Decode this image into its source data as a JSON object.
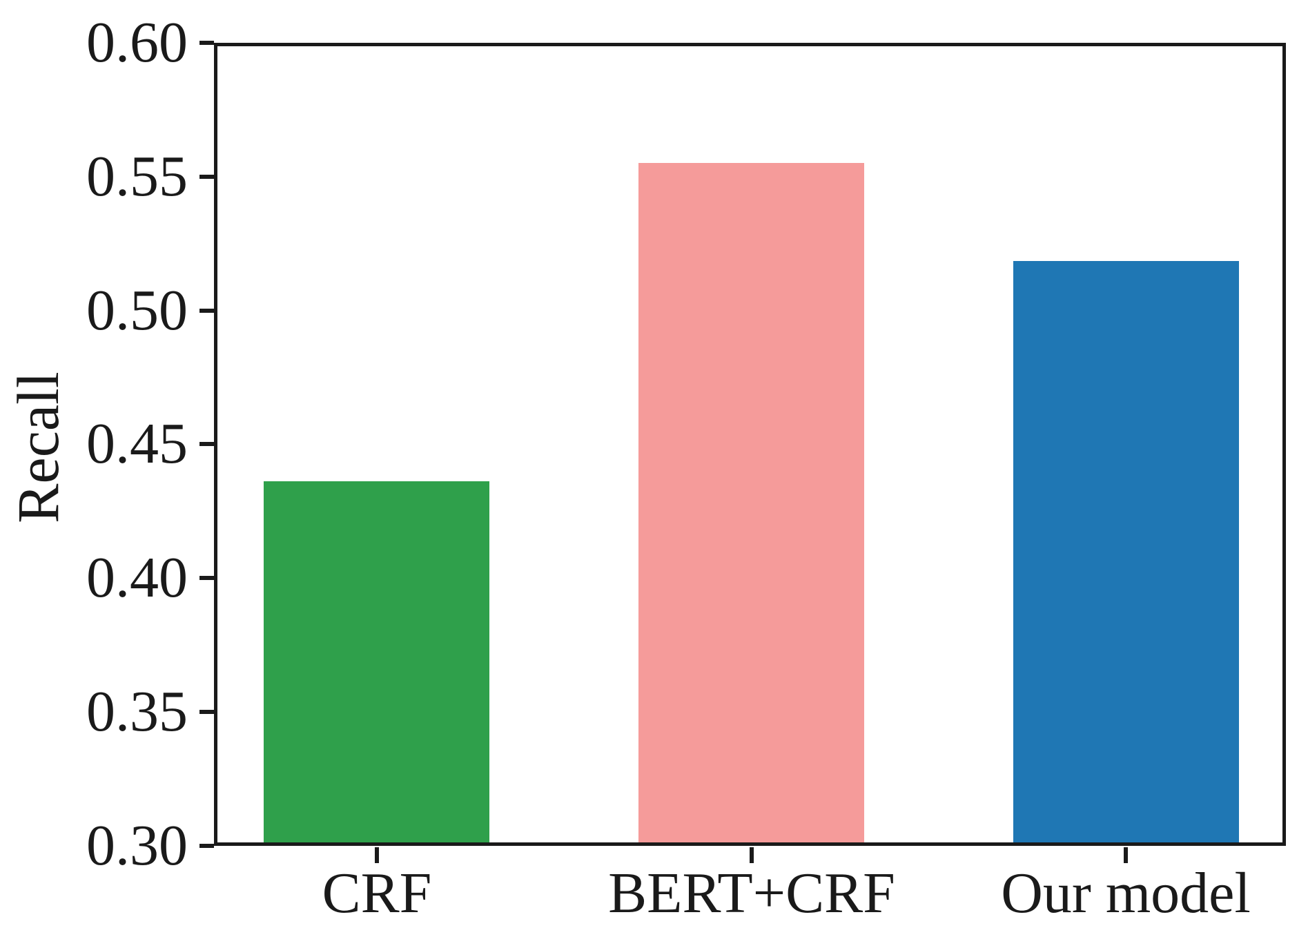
{
  "chart_data": {
    "type": "bar",
    "title": "",
    "categories": [
      "CRF",
      "BERT+CRF",
      "Our model"
    ],
    "values": [
      0.436,
      0.556,
      0.519
    ],
    "colors": [
      "#2fa04b",
      "#f59b9a",
      "#1f77b4"
    ],
    "xlabel": "",
    "ylabel": "Recall",
    "ylim": [
      0.3,
      0.6
    ],
    "yticks": [
      0.3,
      0.35,
      0.4,
      0.45,
      0.5,
      0.55,
      0.6
    ],
    "ytick_labels": [
      "0.30",
      "0.35",
      "0.40",
      "0.45",
      "0.50",
      "0.55",
      "0.60"
    ],
    "grid": false,
    "legend": "none",
    "bar_width_frac": 0.212,
    "axis_color": "#1a1a1a",
    "background_color": "#ffffff"
  }
}
